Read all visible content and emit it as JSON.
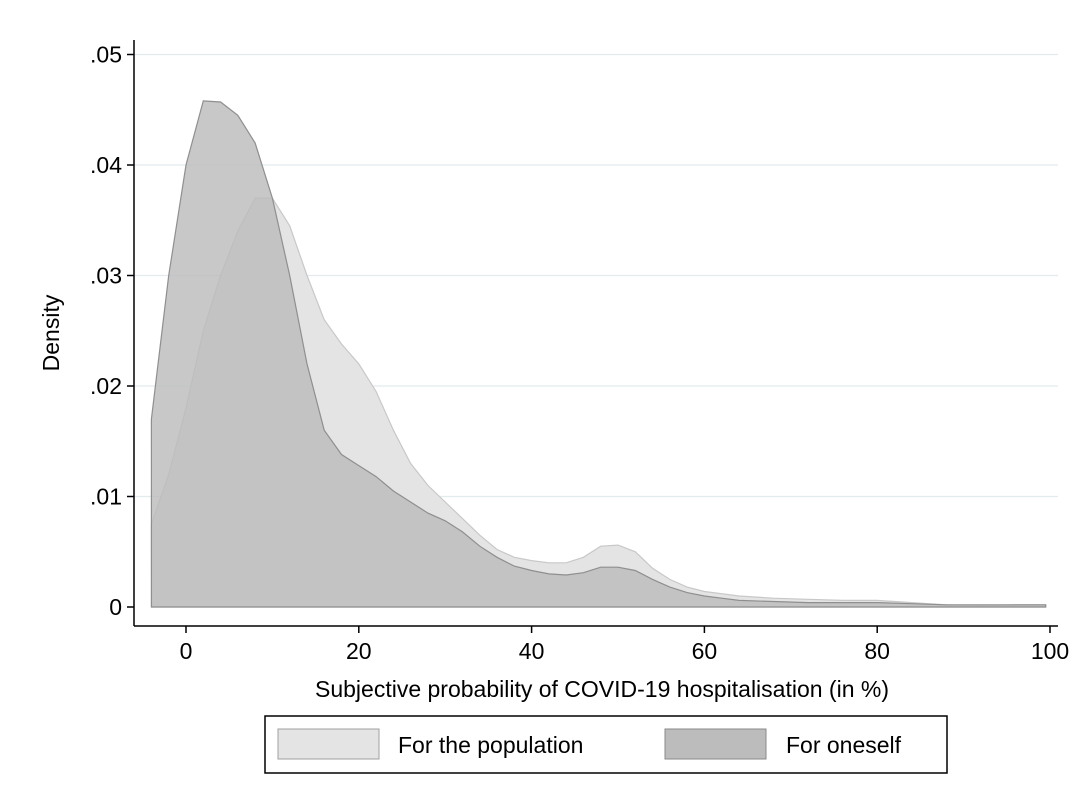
{
  "chart_data": {
    "type": "area",
    "title": "",
    "xlabel": "Subjective probability of COVID-19 hospitalisation (in %)",
    "ylabel": "Density",
    "xlim": [
      -6,
      101
    ],
    "ylim": [
      0,
      0.052
    ],
    "x_ticks": [
      0,
      20,
      40,
      60,
      80,
      100
    ],
    "x_tick_labels": [
      "0",
      "20",
      "40",
      "60",
      "80",
      "100"
    ],
    "y_ticks": [
      0,
      0.01,
      0.02,
      0.03,
      0.04,
      0.05
    ],
    "y_tick_labels": [
      "0",
      ".01",
      ".02",
      ".03",
      ".04",
      ".05"
    ],
    "grid": true,
    "legend_position": "bottom",
    "series": [
      {
        "name": "For the population",
        "color": "#e4e4e4",
        "points": [
          [
            -4,
            0.0075
          ],
          [
            -2,
            0.012
          ],
          [
            0,
            0.018
          ],
          [
            2,
            0.025
          ],
          [
            4,
            0.03
          ],
          [
            6,
            0.034
          ],
          [
            8,
            0.037
          ],
          [
            10,
            0.037
          ],
          [
            12,
            0.0345
          ],
          [
            14,
            0.03
          ],
          [
            16,
            0.026
          ],
          [
            18,
            0.0238
          ],
          [
            20,
            0.022
          ],
          [
            22,
            0.0195
          ],
          [
            24,
            0.016
          ],
          [
            26,
            0.013
          ],
          [
            28,
            0.011
          ],
          [
            30,
            0.0095
          ],
          [
            32,
            0.008
          ],
          [
            34,
            0.0065
          ],
          [
            36,
            0.0052
          ],
          [
            38,
            0.0045
          ],
          [
            40,
            0.0042
          ],
          [
            42,
            0.004
          ],
          [
            44,
            0.004
          ],
          [
            46,
            0.0045
          ],
          [
            48,
            0.0055
          ],
          [
            50,
            0.0056
          ],
          [
            52,
            0.005
          ],
          [
            54,
            0.0035
          ],
          [
            56,
            0.0025
          ],
          [
            58,
            0.0018
          ],
          [
            60,
            0.0014
          ],
          [
            62,
            0.0012
          ],
          [
            64,
            0.001
          ],
          [
            68,
            0.0008
          ],
          [
            72,
            0.0007
          ],
          [
            76,
            0.0006
          ],
          [
            80,
            0.0006
          ],
          [
            84,
            0.0004
          ],
          [
            88,
            0.0002
          ],
          [
            92,
            0.0001
          ],
          [
            96,
            0.0002
          ],
          [
            99.5,
            0.0002
          ]
        ]
      },
      {
        "name": "For oneself",
        "color": "#bcbcbc",
        "points": [
          [
            -4,
            0.017
          ],
          [
            -2,
            0.03
          ],
          [
            0,
            0.04
          ],
          [
            2,
            0.0458
          ],
          [
            4,
            0.0457
          ],
          [
            6,
            0.0445
          ],
          [
            8,
            0.042
          ],
          [
            10,
            0.037
          ],
          [
            12,
            0.03
          ],
          [
            14,
            0.022
          ],
          [
            16,
            0.016
          ],
          [
            18,
            0.0138
          ],
          [
            20,
            0.0128
          ],
          [
            22,
            0.0118
          ],
          [
            24,
            0.0105
          ],
          [
            26,
            0.0095
          ],
          [
            28,
            0.0085
          ],
          [
            30,
            0.0078
          ],
          [
            32,
            0.0068
          ],
          [
            34,
            0.0055
          ],
          [
            36,
            0.0045
          ],
          [
            38,
            0.0037
          ],
          [
            40,
            0.0033
          ],
          [
            42,
            0.003
          ],
          [
            44,
            0.0029
          ],
          [
            46,
            0.0031
          ],
          [
            48,
            0.0036
          ],
          [
            50,
            0.0036
          ],
          [
            52,
            0.0033
          ],
          [
            54,
            0.0025
          ],
          [
            56,
            0.0018
          ],
          [
            58,
            0.0013
          ],
          [
            60,
            0.001
          ],
          [
            62,
            0.0008
          ],
          [
            64,
            0.0006
          ],
          [
            68,
            0.0005
          ],
          [
            72,
            0.0004
          ],
          [
            76,
            0.0004
          ],
          [
            80,
            0.0004
          ],
          [
            84,
            0.0003
          ],
          [
            88,
            0.0002
          ],
          [
            92,
            0.0002
          ],
          [
            96,
            0.0002
          ],
          [
            99.5,
            0.0002
          ]
        ]
      }
    ]
  }
}
